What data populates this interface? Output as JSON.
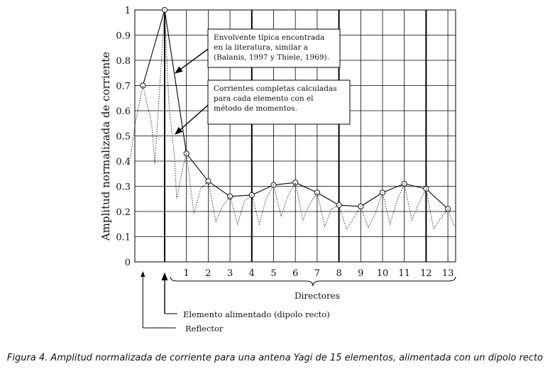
{
  "chart_data": {
    "type": "line",
    "xlabel": "",
    "ylabel": "Amplitud normalizada de corriente",
    "ylim": [
      0,
      1
    ],
    "y_ticks": [
      "0",
      "0.1",
      "0.2",
      "0.3",
      "0.4",
      "0.5",
      "0.6",
      "0.7",
      "0.8",
      "0.9",
      "1"
    ],
    "director_ticks": [
      "1",
      "2",
      "3",
      "4",
      "5",
      "6",
      "7",
      "8",
      "9",
      "10",
      "11",
      "12",
      "13"
    ],
    "directors_label": "Directores",
    "grid": true,
    "series": [
      {
        "name": "Envolvente",
        "style": "solid-markers",
        "x": [
          -1,
          0,
          1,
          2,
          3,
          4,
          5,
          6,
          7,
          8,
          9,
          10,
          11,
          12,
          13
        ],
        "values": [
          0.7,
          1.0,
          0.43,
          0.32,
          0.26,
          0.265,
          0.305,
          0.315,
          0.275,
          0.225,
          0.22,
          0.275,
          0.31,
          0.29,
          0.21
        ]
      },
      {
        "name": "Corrientes completas",
        "style": "dotted",
        "x": [
          -1.6,
          -1.35,
          -1.0,
          -0.6,
          -0.45,
          0,
          0.2,
          0.45,
          0.55,
          0.85,
          1.0,
          1.35,
          1.65,
          2.0,
          2.35,
          2.65,
          3.0,
          3.35,
          3.65,
          4.0,
          4.35,
          4.65,
          5.0,
          5.35,
          5.65,
          6.0,
          6.35,
          6.65,
          7.0,
          7.35,
          7.65,
          8.0,
          8.35,
          8.65,
          9.0,
          9.35,
          9.65,
          10.0,
          10.35,
          10.65,
          11.0,
          11.35,
          11.65,
          12.0,
          12.35,
          12.65,
          13.0,
          13.3
        ],
        "values": [
          0.4,
          0.55,
          0.7,
          0.55,
          0.39,
          1.0,
          0.62,
          0.42,
          0.25,
          0.38,
          0.43,
          0.19,
          0.29,
          0.32,
          0.16,
          0.22,
          0.26,
          0.15,
          0.24,
          0.265,
          0.15,
          0.25,
          0.305,
          0.18,
          0.26,
          0.315,
          0.165,
          0.23,
          0.275,
          0.14,
          0.21,
          0.225,
          0.13,
          0.17,
          0.22,
          0.135,
          0.19,
          0.275,
          0.15,
          0.24,
          0.31,
          0.165,
          0.23,
          0.29,
          0.13,
          0.17,
          0.21,
          0.14
        ]
      }
    ],
    "annotations": [
      {
        "lines": [
          "Envolvente típica encontrada",
          "en la literatura, similar a",
          "(Balanis, 1997 y Thiele, 1969)."
        ]
      },
      {
        "lines": [
          "Corrientes completas calculadas",
          "para cada elemento con el",
          "método de momentos."
        ]
      }
    ],
    "element_labels": {
      "fed": "Elemento alimentado (dipolo recto)",
      "reflector": "Reflector"
    }
  },
  "caption": "Figura 4. Amplitud normalizada de corriente para una antena Yagi de 15 elementos, alimentada con un dipolo recto"
}
